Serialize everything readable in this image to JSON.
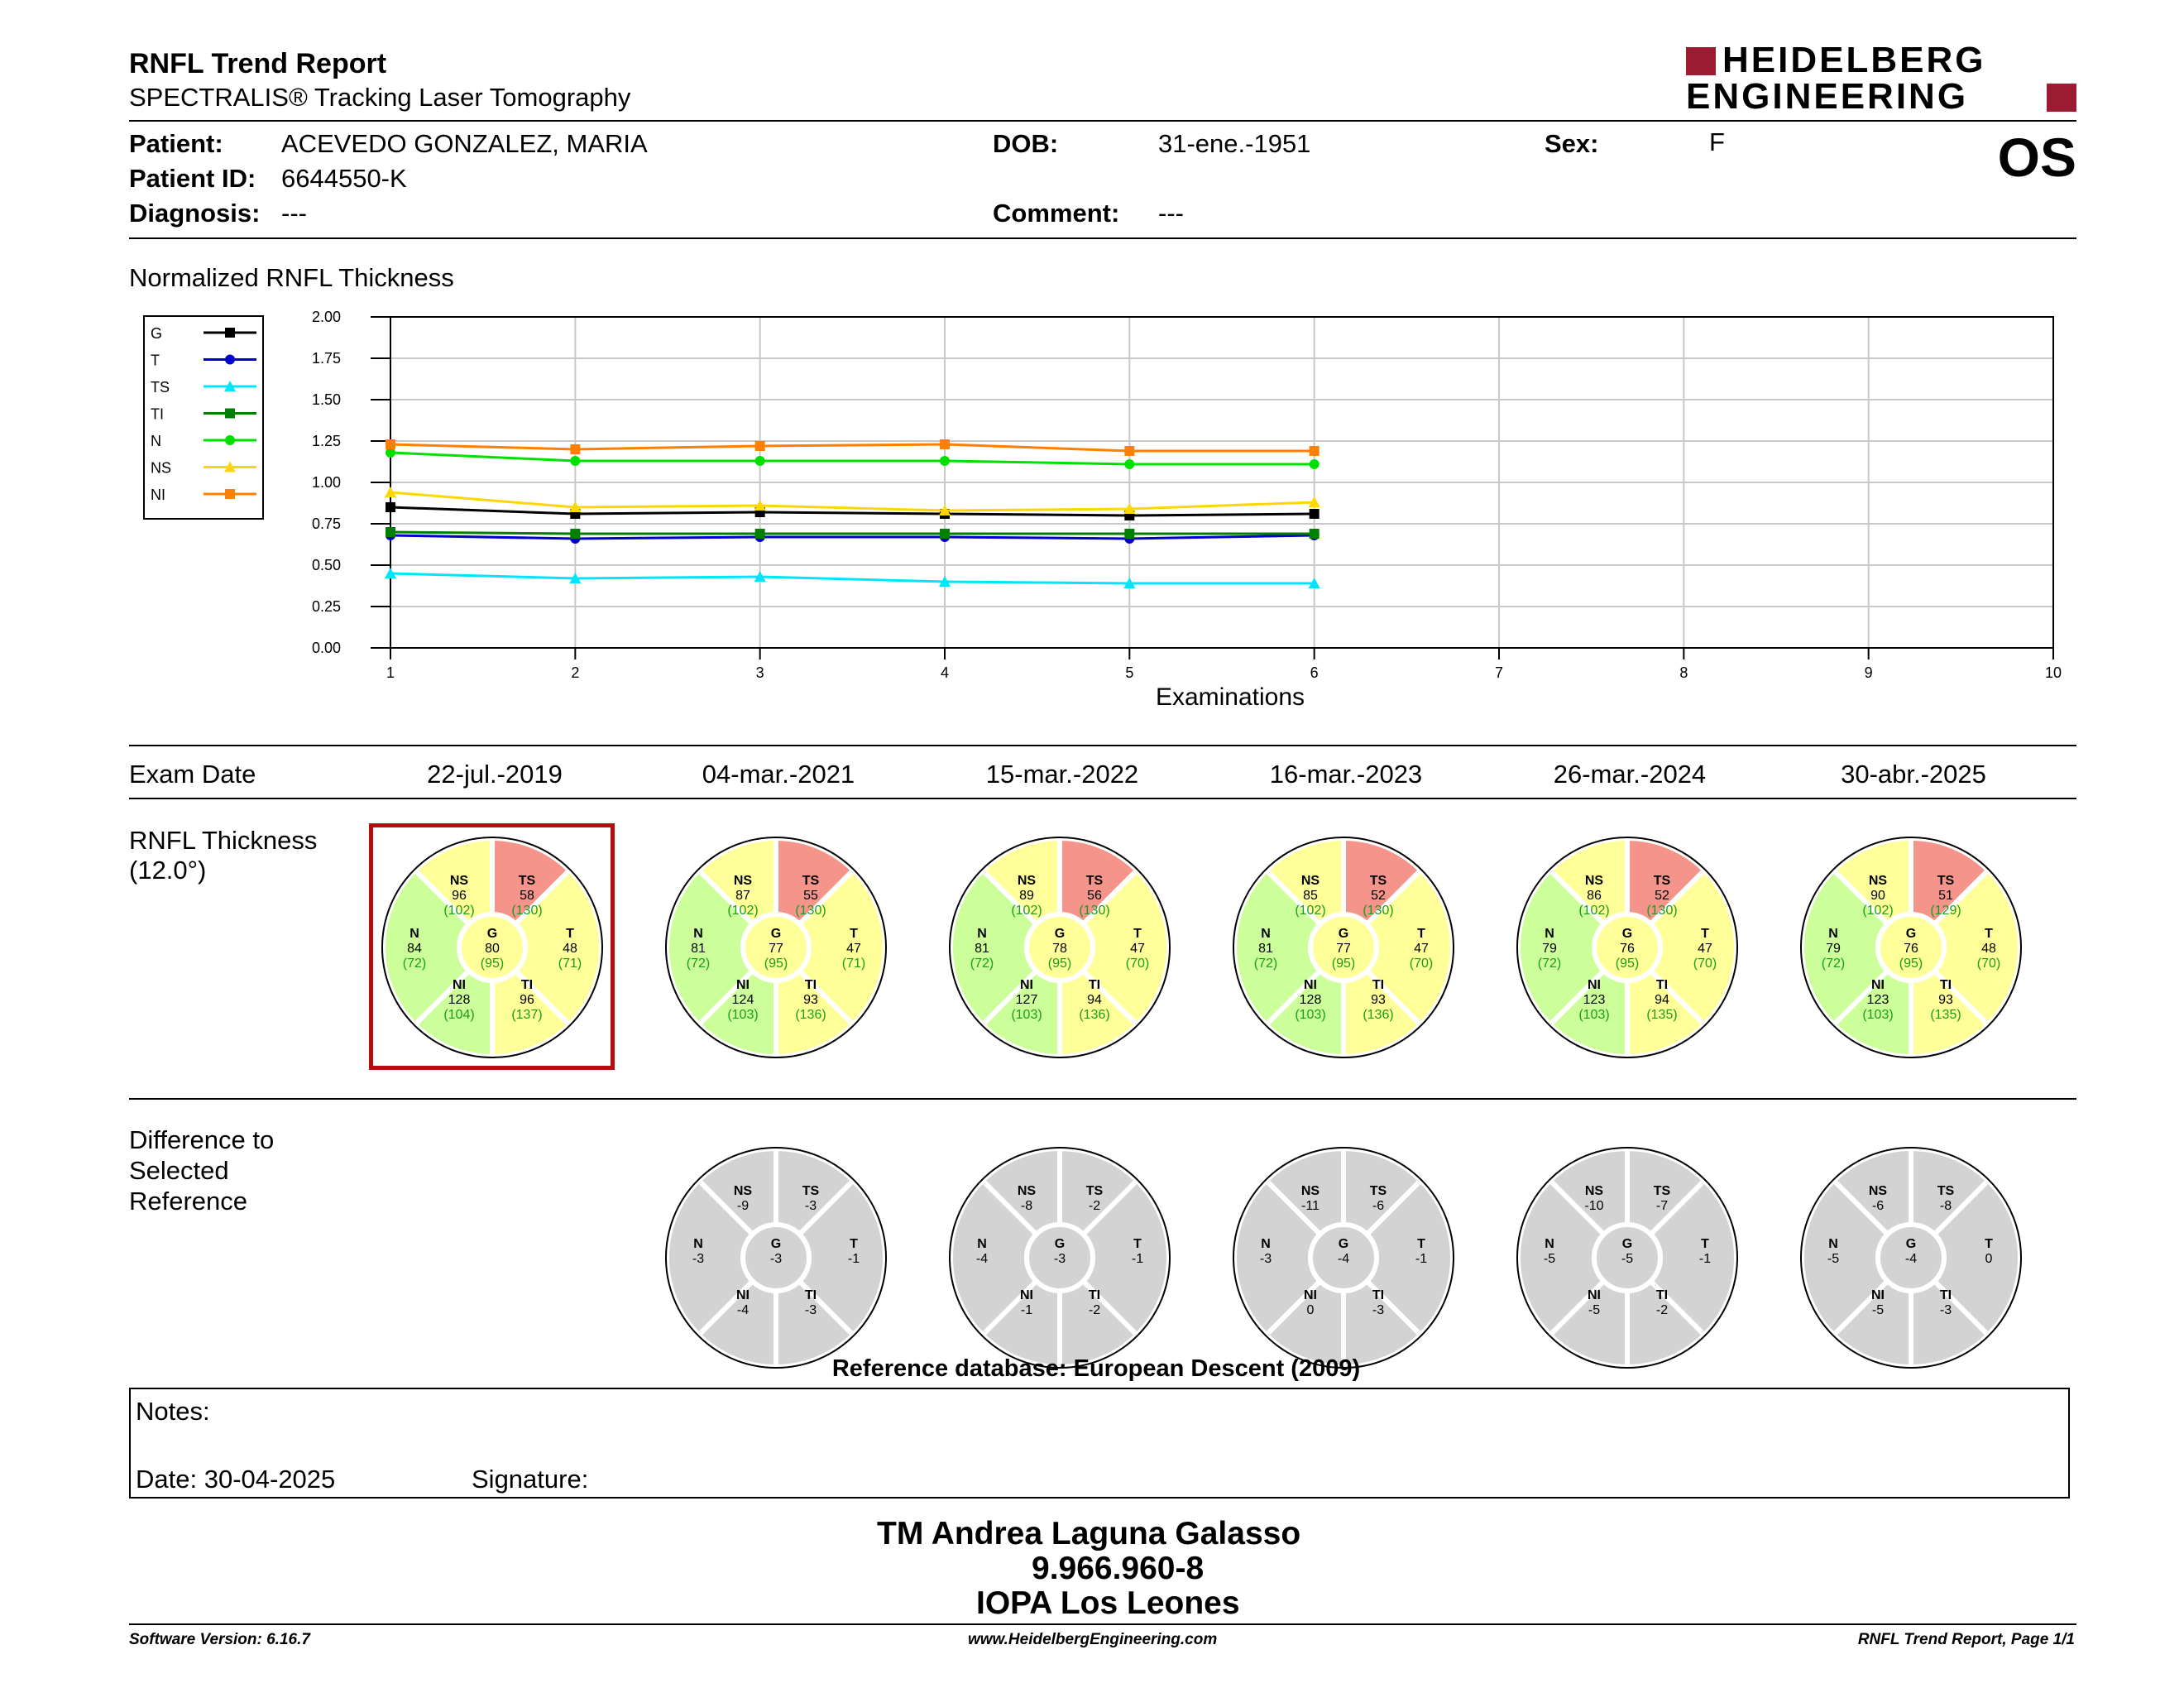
{
  "header": {
    "title": "RNFL Trend Report",
    "subtitle": "SPECTRALIS® Tracking Laser Tomography",
    "brand_line1": "HEIDELBERG",
    "brand_line2": "ENGINEERING",
    "brand_color": "#9b1b30",
    "eye": "OS"
  },
  "patient": {
    "patient_label": "Patient:",
    "patient_value": "ACEVEDO GONZALEZ, MARIA",
    "id_label": "Patient ID:",
    "id_value": "6644550-K",
    "diagnosis_label": "Diagnosis:",
    "diagnosis_value": "---",
    "dob_label": "DOB:",
    "dob_value": "31-ene.-1951",
    "comment_label": "Comment:",
    "comment_value": "---",
    "sex_label": "Sex:",
    "sex_value": "F"
  },
  "chart_data": {
    "type": "line",
    "title": "Normalized RNFL Thickness",
    "xlabel": "Examinations",
    "ylabel": "",
    "x": [
      1,
      2,
      3,
      4,
      5,
      6
    ],
    "xlim": [
      1,
      10
    ],
    "ylim": [
      0,
      2
    ],
    "xticks": [
      "1",
      "2",
      "3",
      "4",
      "5",
      "6",
      "7",
      "8",
      "9",
      "10"
    ],
    "yticks": [
      "0.00",
      "0.25",
      "0.50",
      "0.75",
      "1.00",
      "1.25",
      "1.50",
      "1.75",
      "2.00"
    ],
    "grid": true,
    "legend_position": "left",
    "series": [
      {
        "name": "G",
        "color": "#000000",
        "marker": "square",
        "values": [
          0.85,
          0.81,
          0.82,
          0.81,
          0.8,
          0.81
        ]
      },
      {
        "name": "T",
        "color": "#0000cc",
        "marker": "circle",
        "values": [
          0.68,
          0.66,
          0.67,
          0.67,
          0.66,
          0.68
        ]
      },
      {
        "name": "TS",
        "color": "#00e5ff",
        "marker": "triangle",
        "values": [
          0.45,
          0.42,
          0.43,
          0.4,
          0.39,
          0.39
        ]
      },
      {
        "name": "TI",
        "color": "#008000",
        "marker": "square",
        "values": [
          0.7,
          0.69,
          0.69,
          0.69,
          0.69,
          0.69
        ]
      },
      {
        "name": "N",
        "color": "#00e000",
        "marker": "circle",
        "values": [
          1.18,
          1.13,
          1.13,
          1.13,
          1.11,
          1.11
        ]
      },
      {
        "name": "NS",
        "color": "#ffd700",
        "marker": "triangle",
        "values": [
          0.94,
          0.85,
          0.86,
          0.83,
          0.84,
          0.88
        ]
      },
      {
        "name": "NI",
        "color": "#ff8000",
        "marker": "square",
        "values": [
          1.23,
          1.2,
          1.22,
          1.23,
          1.19,
          1.19
        ]
      }
    ]
  },
  "exam_date_label": "Exam Date",
  "exam_dates": [
    "22-jul.-2019",
    "04-mar.-2021",
    "15-mar.-2022",
    "16-mar.-2023",
    "26-mar.-2024",
    "30-abr.-2025"
  ],
  "thickness_label_1": "RNFL Thickness",
  "thickness_label_2": "(12.0°)",
  "colors": {
    "normal": "#ccff99",
    "borderline": "#ffff99",
    "outside": "#f4948a",
    "difference": "#d3d3d3",
    "reference_text": "#1a9c1a",
    "selection_box": "#b40d0d"
  },
  "thickness": [
    {
      "NS": "96",
      "TS": "58",
      "N": "84",
      "G": "80",
      "T": "48",
      "NI": "128",
      "TI": "96",
      "NSr": "(102)",
      "TSr": "(130)",
      "Nr": "(72)",
      "Gr": "(95)",
      "Tr": "(71)",
      "NIr": "(104)",
      "TIr": "(137)"
    },
    {
      "NS": "87",
      "TS": "55",
      "N": "81",
      "G": "77",
      "T": "47",
      "NI": "124",
      "TI": "93",
      "NSr": "(102)",
      "TSr": "(130)",
      "Nr": "(72)",
      "Gr": "(95)",
      "Tr": "(71)",
      "NIr": "(103)",
      "TIr": "(136)"
    },
    {
      "NS": "89",
      "TS": "56",
      "N": "81",
      "G": "78",
      "T": "47",
      "NI": "127",
      "TI": "94",
      "NSr": "(102)",
      "TSr": "(130)",
      "Nr": "(72)",
      "Gr": "(95)",
      "Tr": "(70)",
      "NIr": "(103)",
      "TIr": "(136)"
    },
    {
      "NS": "85",
      "TS": "52",
      "N": "81",
      "G": "77",
      "T": "47",
      "NI": "128",
      "TI": "93",
      "NSr": "(102)",
      "TSr": "(130)",
      "Nr": "(72)",
      "Gr": "(95)",
      "Tr": "(70)",
      "NIr": "(103)",
      "TIr": "(136)"
    },
    {
      "NS": "86",
      "TS": "52",
      "N": "79",
      "G": "76",
      "T": "47",
      "NI": "123",
      "TI": "94",
      "NSr": "(102)",
      "TSr": "(130)",
      "Nr": "(72)",
      "Gr": "(95)",
      "Tr": "(70)",
      "NIr": "(103)",
      "TIr": "(135)"
    },
    {
      "NS": "90",
      "TS": "51",
      "N": "79",
      "G": "76",
      "T": "48",
      "NI": "123",
      "TI": "93",
      "NSr": "(102)",
      "TSr": "(129)",
      "Nr": "(72)",
      "Gr": "(95)",
      "Tr": "(70)",
      "NIr": "(103)",
      "TIr": "(135)"
    }
  ],
  "difference_label_1": "Difference to",
  "difference_label_2": "Selected",
  "difference_label_3": "Reference",
  "differences": [
    {
      "NS": "-9",
      "TS": "-3",
      "N": "-3",
      "G": "-3",
      "T": "-1",
      "NI": "-4",
      "TI": "-3"
    },
    {
      "NS": "-8",
      "TS": "-2",
      "N": "-4",
      "G": "-3",
      "T": "-1",
      "NI": "-1",
      "TI": "-2"
    },
    {
      "NS": "-11",
      "TS": "-6",
      "N": "-3",
      "G": "-4",
      "T": "-1",
      "NI": "0",
      "TI": "-3"
    },
    {
      "NS": "-10",
      "TS": "-7",
      "N": "-5",
      "G": "-5",
      "T": "-1",
      "NI": "-5",
      "TI": "-2"
    },
    {
      "NS": "-6",
      "TS": "-8",
      "N": "-5",
      "G": "-4",
      "T": "0",
      "NI": "-5",
      "TI": "-3"
    }
  ],
  "reference_db": "Reference database: European Descent (2009)",
  "notes": {
    "notes_label": "Notes:",
    "date_label": "Date: 30-04-2025",
    "signature_label": "Signature:"
  },
  "stamp": {
    "line1": "TM Andrea Laguna Galasso",
    "line2": "9.966.960-8",
    "line3": "IOPA Los Leones"
  },
  "footer": {
    "version": "Software Version: 6.16.7",
    "website": "www.HeidelbergEngineering.com",
    "page": "RNFL Trend Report, Page 1/1"
  }
}
